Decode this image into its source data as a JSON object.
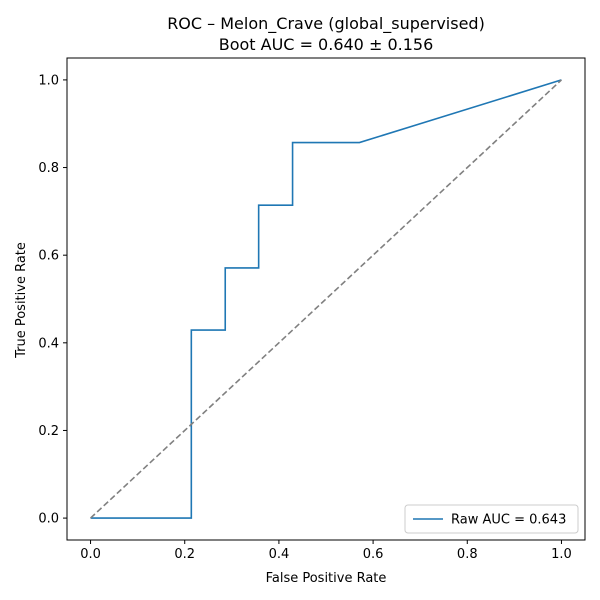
{
  "chart_data": {
    "type": "line",
    "title": "ROC – Melon_Crave (global_supervised)",
    "subtitle": "Boot AUC = 0.640 ± 0.156",
    "xlabel": "False Positive Rate",
    "ylabel": "True Positive Rate",
    "xlim": [
      -0.05,
      1.05
    ],
    "ylim": [
      -0.05,
      1.05
    ],
    "xticks": [
      "0.0",
      "0.2",
      "0.4",
      "0.6",
      "0.8",
      "1.0"
    ],
    "yticks": [
      "0.0",
      "0.2",
      "0.4",
      "0.6",
      "0.8",
      "1.0"
    ],
    "grid": false,
    "legend_position": "lower-right",
    "series": [
      {
        "name": "Raw AUC = 0.643",
        "color": "#1f77b4",
        "style": "solid",
        "x": [
          0.0,
          0.0,
          0.214,
          0.214,
          0.286,
          0.286,
          0.357,
          0.357,
          0.429,
          0.429,
          0.571,
          1.0
        ],
        "y": [
          0.0,
          0.0,
          0.0,
          0.429,
          0.429,
          0.571,
          0.571,
          0.714,
          0.714,
          0.857,
          0.857,
          1.0
        ]
      },
      {
        "color": "#808080",
        "style": "dashed",
        "x": [
          0.0,
          1.0
        ],
        "y": [
          0.0,
          1.0
        ]
      }
    ]
  }
}
